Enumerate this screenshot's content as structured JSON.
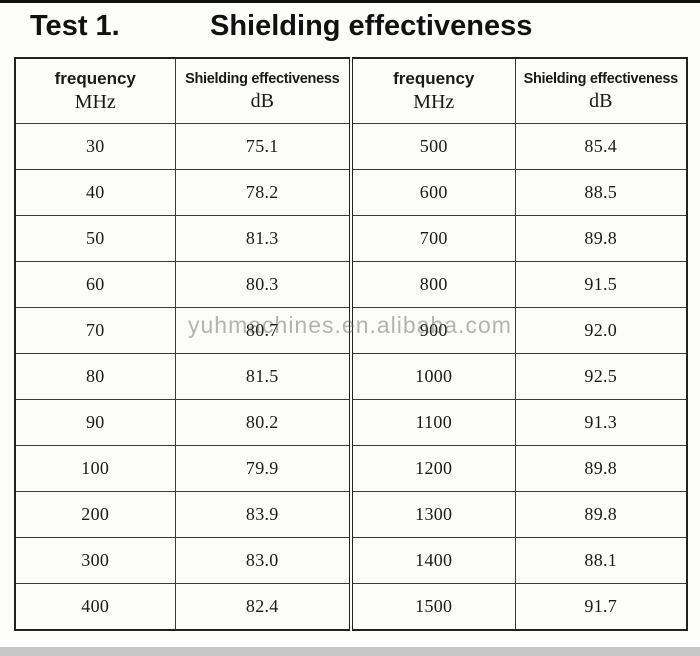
{
  "title": {
    "test_label": "Test 1.",
    "heading": "Shielding effectiveness"
  },
  "table": {
    "columns": [
      {
        "line1": "frequency",
        "line2": "MHz"
      },
      {
        "line1": "Shielding effectiveness",
        "line2": "dB"
      },
      {
        "line1": "frequency",
        "line2": "MHz"
      },
      {
        "line1": "Shielding effectiveness",
        "line2": "dB"
      }
    ],
    "rows": [
      [
        "30",
        "75.1",
        "500",
        "85.4"
      ],
      [
        "40",
        "78.2",
        "600",
        "88.5"
      ],
      [
        "50",
        "81.3",
        "700",
        "89.8"
      ],
      [
        "60",
        "80.3",
        "800",
        "91.5"
      ],
      [
        "70",
        "80.7",
        "900",
        "92.0"
      ],
      [
        "80",
        "81.5",
        "1000",
        "92.5"
      ],
      [
        "90",
        "80.2",
        "1100",
        "91.3"
      ],
      [
        "100",
        "79.9",
        "1200",
        "89.8"
      ],
      [
        "200",
        "83.9",
        "1300",
        "89.8"
      ],
      [
        "300",
        "83.0",
        "1400",
        "88.1"
      ],
      [
        "400",
        "82.4",
        "1500",
        "91.7"
      ]
    ]
  },
  "watermark": "yuhmachines.en.alibaba.com"
}
